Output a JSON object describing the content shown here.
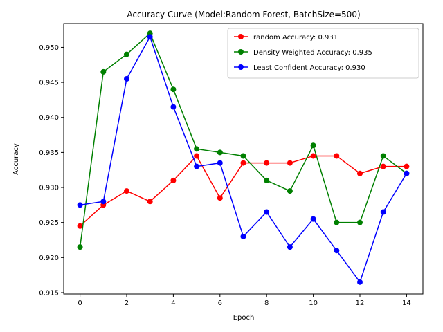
{
  "chart_data": {
    "type": "line",
    "title": "Accuracy Curve (Model:Random Forest, BatchSize=500)",
    "xlabel": "Epoch",
    "ylabel": "Accuracy",
    "xlim": [
      -0.7,
      14.7
    ],
    "ylim": [
      0.9148,
      0.9534
    ],
    "xticks": [
      0,
      2,
      4,
      6,
      8,
      10,
      12,
      14
    ],
    "yticks": [
      0.915,
      0.92,
      0.925,
      0.93,
      0.935,
      0.94,
      0.945,
      0.95
    ],
    "ytick_labels": [
      "0.915",
      "0.920",
      "0.925",
      "0.930",
      "0.935",
      "0.940",
      "0.945",
      "0.950"
    ],
    "grid": false,
    "legend_position": "top-right",
    "x": [
      0,
      1,
      2,
      3,
      4,
      5,
      6,
      7,
      8,
      9,
      10,
      11,
      12,
      13,
      14
    ],
    "series": [
      {
        "name": "random Accuracy: 0.931",
        "color": "#ff0000",
        "values": [
          0.9245,
          0.9275,
          0.9295,
          0.928,
          0.931,
          0.9345,
          0.9285,
          0.9335,
          0.9335,
          0.9335,
          0.9345,
          0.9345,
          0.932,
          0.933,
          0.933
        ]
      },
      {
        "name": "Density Weighted Accuracy: 0.935",
        "color": "#008000",
        "values": [
          0.9215,
          0.9465,
          0.949,
          0.952,
          0.944,
          0.9355,
          0.935,
          0.9345,
          0.931,
          0.9295,
          0.936,
          0.925,
          0.925,
          0.9345,
          0.932
        ]
      },
      {
        "name": "Least Confident Accuracy: 0.930",
        "color": "#0000ff",
        "values": [
          0.9275,
          0.928,
          0.9455,
          0.9515,
          0.9415,
          0.933,
          0.9335,
          0.923,
          0.9265,
          0.9215,
          0.9255,
          0.921,
          0.9165,
          0.9265,
          0.932
        ]
      }
    ]
  }
}
